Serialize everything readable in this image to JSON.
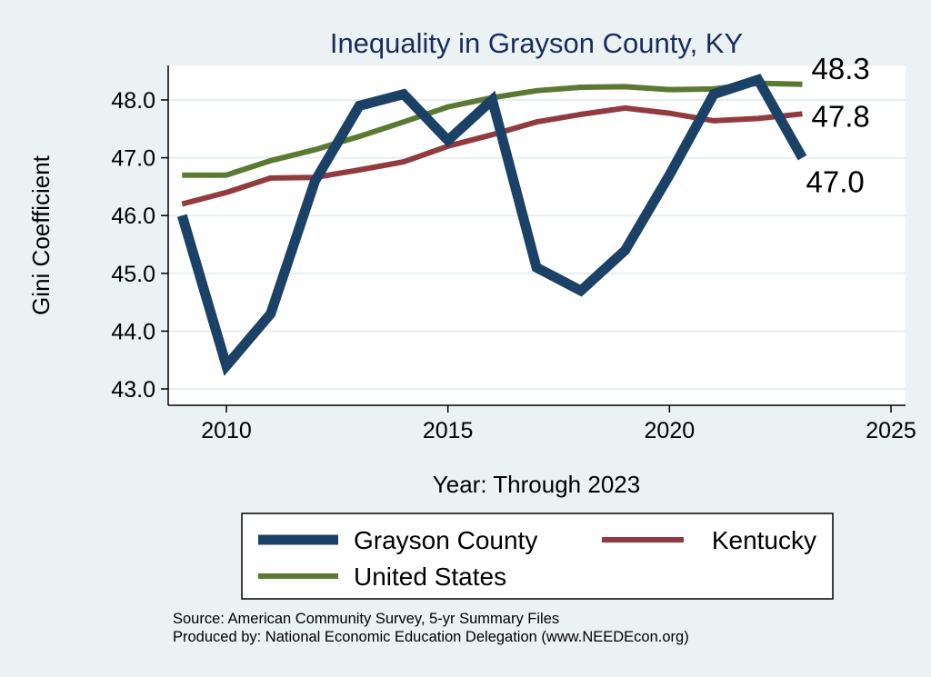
{
  "chart_data": {
    "type": "line",
    "title": "Inequality in Grayson County, KY",
    "xlabel": "Year: Through 2023",
    "ylabel": "Gini Coefficient",
    "xlim": [
      2009,
      2025
    ],
    "ylim": [
      42.8,
      48.6
    ],
    "x_ticks": [
      2010,
      2015,
      2020,
      2025
    ],
    "y_ticks": [
      43.0,
      44.0,
      45.0,
      46.0,
      47.0,
      48.0
    ],
    "y_tick_labels": [
      "43.0",
      "44.0",
      "45.0",
      "46.0",
      "47.0",
      "48.0"
    ],
    "grid": true,
    "legend_position": "bottom",
    "x": [
      2009,
      2010,
      2011,
      2012,
      2013,
      2014,
      2015,
      2016,
      2017,
      2018,
      2019,
      2020,
      2021,
      2022,
      2023
    ],
    "series": [
      {
        "name": "Grayson County",
        "color": "#1b4266",
        "values": [
          46.0,
          43.4,
          44.3,
          46.6,
          47.9,
          48.1,
          47.3,
          48.0,
          45.1,
          44.7,
          45.4,
          46.7,
          48.1,
          48.35,
          47.0
        ],
        "end_label": "47.0"
      },
      {
        "name": "Kentucky",
        "color": "#923b3f",
        "values": [
          46.2,
          46.4,
          46.65,
          46.66,
          46.79,
          46.93,
          47.2,
          47.4,
          47.62,
          47.75,
          47.86,
          47.77,
          47.64,
          47.68,
          47.76
        ],
        "end_label": "47.8"
      },
      {
        "name": "United States",
        "color": "#5a7a33",
        "values": [
          46.7,
          46.7,
          46.95,
          47.14,
          47.37,
          47.62,
          47.88,
          48.04,
          48.16,
          48.22,
          48.23,
          48.18,
          48.19,
          48.29,
          48.27
        ],
        "end_label": "48.3"
      }
    ]
  },
  "source_line1": "Source: American Community Survey, 5-yr Summary Files",
  "source_line2": "Produced by: National Economic Education Delegation (www.NEEDEcon.org)"
}
